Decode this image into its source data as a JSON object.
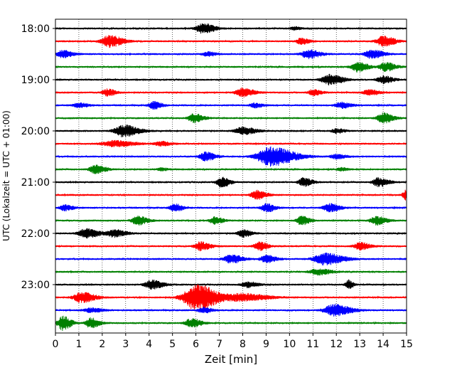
{
  "chart_data": {
    "type": "line",
    "plot_kind": "helicorder",
    "xlabel": "Zeit  [min]",
    "ylabel": "UTC (Lokalzeit = UTC + 01:00)",
    "xlim": [
      0,
      15
    ],
    "x_ticks": [
      "0",
      "1",
      "2",
      "3",
      "4",
      "5",
      "6",
      "7",
      "8",
      "9",
      "10",
      "11",
      "12",
      "13",
      "14",
      "15"
    ],
    "y_tick_labels": [
      "18:00",
      "19:00",
      "20:00",
      "21:00",
      "22:00",
      "23:00"
    ],
    "grid": "vertical dotted lines at each minute",
    "trace_colors": [
      "#000000",
      "#ff0000",
      "#0000ff",
      "#008000"
    ],
    "trace_start_times": [
      "18:00",
      "18:15",
      "18:30",
      "18:45",
      "19:00",
      "19:15",
      "19:30",
      "19:45",
      "20:00",
      "20:15",
      "20:30",
      "20:45",
      "21:00",
      "21:15",
      "21:30",
      "21:45",
      "22:00",
      "22:15",
      "22:30",
      "22:45",
      "23:00",
      "23:15",
      "23:30",
      "23:45"
    ],
    "traces": [
      {
        "start": "18:00",
        "color": "#000000",
        "events": [
          {
            "t": 6.3,
            "amp": 7,
            "dur": 0.7
          },
          {
            "t": 10.2,
            "amp": 2,
            "dur": 0.4
          }
        ]
      },
      {
        "start": "18:15",
        "color": "#ff0000",
        "events": [
          {
            "t": 2.3,
            "amp": 8,
            "dur": 0.8
          },
          {
            "t": 10.5,
            "amp": 4,
            "dur": 0.5
          },
          {
            "t": 14.0,
            "amp": 7,
            "dur": 0.7
          }
        ]
      },
      {
        "start": "18:30",
        "color": "#0000ff",
        "events": [
          {
            "t": 0.3,
            "amp": 5,
            "dur": 0.6
          },
          {
            "t": 6.5,
            "amp": 3,
            "dur": 0.5
          },
          {
            "t": 10.8,
            "amp": 6,
            "dur": 0.7
          },
          {
            "t": 13.5,
            "amp": 6,
            "dur": 0.7
          }
        ]
      },
      {
        "start": "18:45",
        "color": "#008000",
        "events": [
          {
            "t": 12.9,
            "amp": 7,
            "dur": 0.6
          },
          {
            "t": 14.1,
            "amp": 6,
            "dur": 0.6
          }
        ]
      },
      {
        "start": "19:00",
        "color": "#000000",
        "events": [
          {
            "t": 11.7,
            "amp": 7,
            "dur": 0.8
          },
          {
            "t": 14.0,
            "amp": 5,
            "dur": 0.6
          }
        ]
      },
      {
        "start": "19:15",
        "color": "#ff0000",
        "events": [
          {
            "t": 2.2,
            "amp": 5,
            "dur": 0.5
          },
          {
            "t": 8.0,
            "amp": 6,
            "dur": 0.7
          },
          {
            "t": 11.0,
            "amp": 4,
            "dur": 0.5
          },
          {
            "t": 13.4,
            "amp": 4,
            "dur": 0.6
          }
        ]
      },
      {
        "start": "19:30",
        "color": "#0000ff",
        "events": [
          {
            "t": 1.0,
            "amp": 3,
            "dur": 0.6
          },
          {
            "t": 4.2,
            "amp": 5,
            "dur": 0.5
          },
          {
            "t": 8.5,
            "amp": 3,
            "dur": 0.5
          },
          {
            "t": 12.2,
            "amp": 4,
            "dur": 0.6
          }
        ]
      },
      {
        "start": "19:45",
        "color": "#008000",
        "events": [
          {
            "t": 5.9,
            "amp": 6,
            "dur": 0.6
          },
          {
            "t": 14.0,
            "amp": 7,
            "dur": 0.6
          }
        ]
      },
      {
        "start": "20:00",
        "color": "#000000",
        "events": [
          {
            "t": 2.9,
            "amp": 8,
            "dur": 0.9
          },
          {
            "t": 8.0,
            "amp": 5,
            "dur": 0.8
          },
          {
            "t": 12.0,
            "amp": 3,
            "dur": 0.5
          }
        ]
      },
      {
        "start": "20:15",
        "color": "#ff0000",
        "events": [
          {
            "t": 2.5,
            "amp": 4,
            "dur": 1.2
          },
          {
            "t": 4.5,
            "amp": 3,
            "dur": 0.6
          }
        ]
      },
      {
        "start": "20:30",
        "color": "#0000ff",
        "events": [
          {
            "t": 6.4,
            "amp": 6,
            "dur": 0.6
          },
          {
            "t": 9.2,
            "amp": 13,
            "dur": 1.4
          },
          {
            "t": 12.0,
            "amp": 3,
            "dur": 0.6
          }
        ]
      },
      {
        "start": "20:45",
        "color": "#008000",
        "events": [
          {
            "t": 1.7,
            "amp": 6,
            "dur": 0.6
          },
          {
            "t": 4.5,
            "amp": 2,
            "dur": 0.4
          },
          {
            "t": 12.2,
            "amp": 2,
            "dur": 0.4
          }
        ]
      },
      {
        "start": "21:00",
        "color": "#000000",
        "events": [
          {
            "t": 7.1,
            "amp": 7,
            "dur": 0.5
          },
          {
            "t": 10.6,
            "amp": 6,
            "dur": 0.5
          },
          {
            "t": 13.8,
            "amp": 6,
            "dur": 0.6
          }
        ]
      },
      {
        "start": "21:15",
        "color": "#ff0000",
        "events": [
          {
            "t": 8.6,
            "amp": 6,
            "dur": 0.6
          },
          {
            "t": 15.0,
            "amp": 7,
            "dur": 0.4
          }
        ]
      },
      {
        "start": "21:30",
        "color": "#0000ff",
        "events": [
          {
            "t": 0.4,
            "amp": 4,
            "dur": 0.5
          },
          {
            "t": 5.1,
            "amp": 5,
            "dur": 0.5
          },
          {
            "t": 9.0,
            "amp": 6,
            "dur": 0.5
          },
          {
            "t": 11.7,
            "amp": 6,
            "dur": 0.6
          }
        ]
      },
      {
        "start": "21:45",
        "color": "#008000",
        "events": [
          {
            "t": 3.5,
            "amp": 6,
            "dur": 0.6
          },
          {
            "t": 6.8,
            "amp": 5,
            "dur": 0.5
          },
          {
            "t": 10.5,
            "amp": 6,
            "dur": 0.5
          },
          {
            "t": 13.7,
            "amp": 6,
            "dur": 0.6
          }
        ]
      },
      {
        "start": "22:00",
        "color": "#000000",
        "events": [
          {
            "t": 1.3,
            "amp": 6,
            "dur": 0.8
          },
          {
            "t": 2.5,
            "amp": 5,
            "dur": 0.7
          },
          {
            "t": 8.0,
            "amp": 5,
            "dur": 0.5
          }
        ]
      },
      {
        "start": "22:15",
        "color": "#ff0000",
        "events": [
          {
            "t": 6.2,
            "amp": 6,
            "dur": 0.6
          },
          {
            "t": 8.7,
            "amp": 6,
            "dur": 0.5
          },
          {
            "t": 13.0,
            "amp": 5,
            "dur": 0.6
          }
        ]
      },
      {
        "start": "22:30",
        "color": "#0000ff",
        "events": [
          {
            "t": 7.5,
            "amp": 6,
            "dur": 0.7
          },
          {
            "t": 9.0,
            "amp": 5,
            "dur": 0.6
          },
          {
            "t": 11.5,
            "amp": 8,
            "dur": 1.1
          }
        ]
      },
      {
        "start": "22:45",
        "color": "#008000",
        "events": [
          {
            "t": 11.2,
            "amp": 4,
            "dur": 0.8
          }
        ]
      },
      {
        "start": "23:00",
        "color": "#000000",
        "events": [
          {
            "t": 4.1,
            "amp": 6,
            "dur": 0.7
          },
          {
            "t": 8.2,
            "amp": 4,
            "dur": 0.6
          },
          {
            "t": 12.5,
            "amp": 6,
            "dur": 0.3
          }
        ]
      },
      {
        "start": "23:15",
        "color": "#ff0000",
        "events": [
          {
            "t": 1.1,
            "amp": 7,
            "dur": 0.8
          },
          {
            "t": 6.0,
            "amp": 18,
            "dur": 1.3
          },
          {
            "t": 8.0,
            "amp": 5,
            "dur": 1.5
          }
        ]
      },
      {
        "start": "23:30",
        "color": "#0000ff",
        "events": [
          {
            "t": 1.5,
            "amp": 3,
            "dur": 0.7
          },
          {
            "t": 6.3,
            "amp": 4,
            "dur": 0.5
          },
          {
            "t": 11.9,
            "amp": 8,
            "dur": 1.0
          }
        ]
      },
      {
        "start": "23:45",
        "color": "#008000",
        "events": [
          {
            "t": 0.3,
            "amp": 10,
            "dur": 0.5
          },
          {
            "t": 1.5,
            "amp": 7,
            "dur": 0.5
          },
          {
            "t": 5.8,
            "amp": 6,
            "dur": 0.6
          }
        ]
      }
    ]
  }
}
